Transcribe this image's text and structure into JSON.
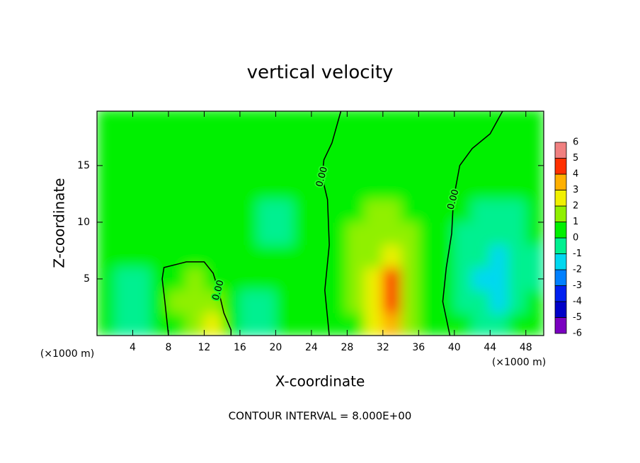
{
  "chart_data": {
    "type": "contour",
    "title": "vertical velocity",
    "x_label": "X-coordinate",
    "y_label": "Z-coordinate",
    "x_unit": "(×1000 m)",
    "y_unit": "(×1000 m)",
    "footer": "CONTOUR INTERVAL = 8.000E+00",
    "xlim": [
      0,
      50
    ],
    "ylim": [
      0,
      19.8
    ],
    "xticks": [
      4,
      8,
      12,
      16,
      20,
      24,
      28,
      32,
      36,
      40,
      44,
      48
    ],
    "yticks": [
      5,
      10,
      15
    ],
    "field": {
      "x": [
        1,
        3,
        5,
        7,
        9,
        11,
        13,
        15,
        17,
        19,
        21,
        23,
        25,
        27,
        29,
        31,
        33,
        35,
        37,
        39,
        41,
        43,
        45,
        47,
        49
      ],
      "z": [
        1,
        3,
        5,
        7,
        9,
        11,
        13,
        15,
        17,
        19
      ],
      "values": [
        [
          0.2,
          -0.3,
          -0.5,
          0.3,
          0.8,
          1.5,
          2.2,
          0.3,
          -0.5,
          -0.3,
          0.2,
          0.2,
          0.3,
          0.5,
          0.8,
          2,
          3,
          1,
          0.3,
          0.2,
          0.2,
          -0.2,
          -0.3,
          0,
          0.2
        ],
        [
          0.2,
          -0.5,
          -0.8,
          0.2,
          1,
          1.5,
          1.2,
          0.3,
          -0.4,
          -0.2,
          0.1,
          0.2,
          0.3,
          0.6,
          1,
          2.5,
          4.2,
          1.5,
          0.4,
          0.2,
          -0.2,
          -0.8,
          -1.2,
          -0.5,
          0
        ],
        [
          0.1,
          -0.3,
          -0.5,
          0.2,
          0.8,
          1.2,
          0.8,
          0.3,
          0,
          0,
          0.1,
          0.2,
          0.3,
          0.6,
          1,
          2.5,
          4.5,
          1.5,
          0.5,
          0.1,
          -0.4,
          -1.2,
          -1.8,
          -1,
          -0.2
        ],
        [
          0.1,
          0.1,
          0,
          0.1,
          0.3,
          0.5,
          0.3,
          0.2,
          0.1,
          0,
          0,
          0.1,
          0.3,
          0.6,
          1,
          1.8,
          2.5,
          1.3,
          0.6,
          0.1,
          -0.3,
          -1,
          -1.5,
          -0.8,
          -0.2
        ],
        [
          0.2,
          0.2,
          0.2,
          0.2,
          0.2,
          0.2,
          0.2,
          0.1,
          0,
          -0.2,
          -0.2,
          0,
          0.3,
          0.7,
          1,
          1.2,
          1.4,
          1,
          0.5,
          0.1,
          -0.2,
          -0.6,
          -0.8,
          -0.4,
          0
        ],
        [
          0.2,
          0.2,
          0.2,
          0.2,
          0.2,
          0.2,
          0.2,
          0.1,
          0,
          -0.2,
          -0.1,
          0.1,
          0.3,
          0.6,
          0.9,
          1,
          1,
          0.8,
          0.5,
          0.2,
          0,
          -0.2,
          -0.3,
          -0.1,
          0.1
        ],
        [
          0.3,
          0.3,
          0.3,
          0.3,
          0.3,
          0.3,
          0.3,
          0.2,
          0.2,
          0.1,
          0.2,
          0.2,
          0.3,
          0.5,
          0.7,
          0.8,
          0.8,
          0.6,
          0.5,
          0.3,
          0.2,
          0.1,
          0,
          0.1,
          0.2
        ],
        [
          0.3,
          0.3,
          0.3,
          0.3,
          0.3,
          0.3,
          0.3,
          0.3,
          0.3,
          0.3,
          0.3,
          0.3,
          0.3,
          0.4,
          0.5,
          0.6,
          0.6,
          0.5,
          0.4,
          0.3,
          0.3,
          0.3,
          0.2,
          0.2,
          0.3
        ],
        [
          0.3,
          0.3,
          0.3,
          0.3,
          0.3,
          0.3,
          0.3,
          0.3,
          0.3,
          0.3,
          0.3,
          0.3,
          0.3,
          0.3,
          0.4,
          0.4,
          0.4,
          0.4,
          0.3,
          0.3,
          0.3,
          0.3,
          0.3,
          0.3,
          0.3
        ],
        [
          0.3,
          0.3,
          0.3,
          0.3,
          0.3,
          0.3,
          0.3,
          0.3,
          0.3,
          0.3,
          0.3,
          0.3,
          0.3,
          0.3,
          0.3,
          0.3,
          0.3,
          0.3,
          0.3,
          0.3,
          0.3,
          0.3,
          0.3,
          0.3,
          0.3
        ]
      ]
    },
    "contours": [
      {
        "level": 0,
        "label": "0.00",
        "x": [
          8,
          7.6,
          7.3,
          7.5,
          10,
          12,
          13,
          13.6,
          14.2,
          15,
          15
        ],
        "z": [
          0,
          3,
          5,
          6,
          6.5,
          6.5,
          5.5,
          4,
          2,
          0.5,
          0
        ]
      },
      {
        "level": 0,
        "label": "0.00",
        "x": [
          26,
          25.5,
          26,
          25.8,
          25.2,
          25.4,
          26.3,
          27.3
        ],
        "z": [
          0,
          4,
          8,
          12,
          14,
          15.5,
          17,
          19.8
        ]
      },
      {
        "level": 0,
        "label": "0.00",
        "x": [
          39.5,
          38.7,
          39.1,
          39.7,
          39.9,
          40.6,
          42,
          44,
          45.4
        ],
        "z": [
          0,
          3,
          6,
          9,
          12,
          15,
          16.5,
          17.8,
          19.8
        ]
      }
    ],
    "colorbar": {
      "ticks": [
        -6,
        -5,
        -4,
        -3,
        -2,
        -1,
        0,
        1,
        2,
        3,
        4,
        5,
        6
      ],
      "colors": [
        "#7a00c0",
        "#0000c8",
        "#0020f0",
        "#0080ff",
        "#00d8f0",
        "#00f090",
        "#00f000",
        "#90f000",
        "#f0f000",
        "#ffb000",
        "#ff3000",
        "#f08080"
      ]
    }
  }
}
